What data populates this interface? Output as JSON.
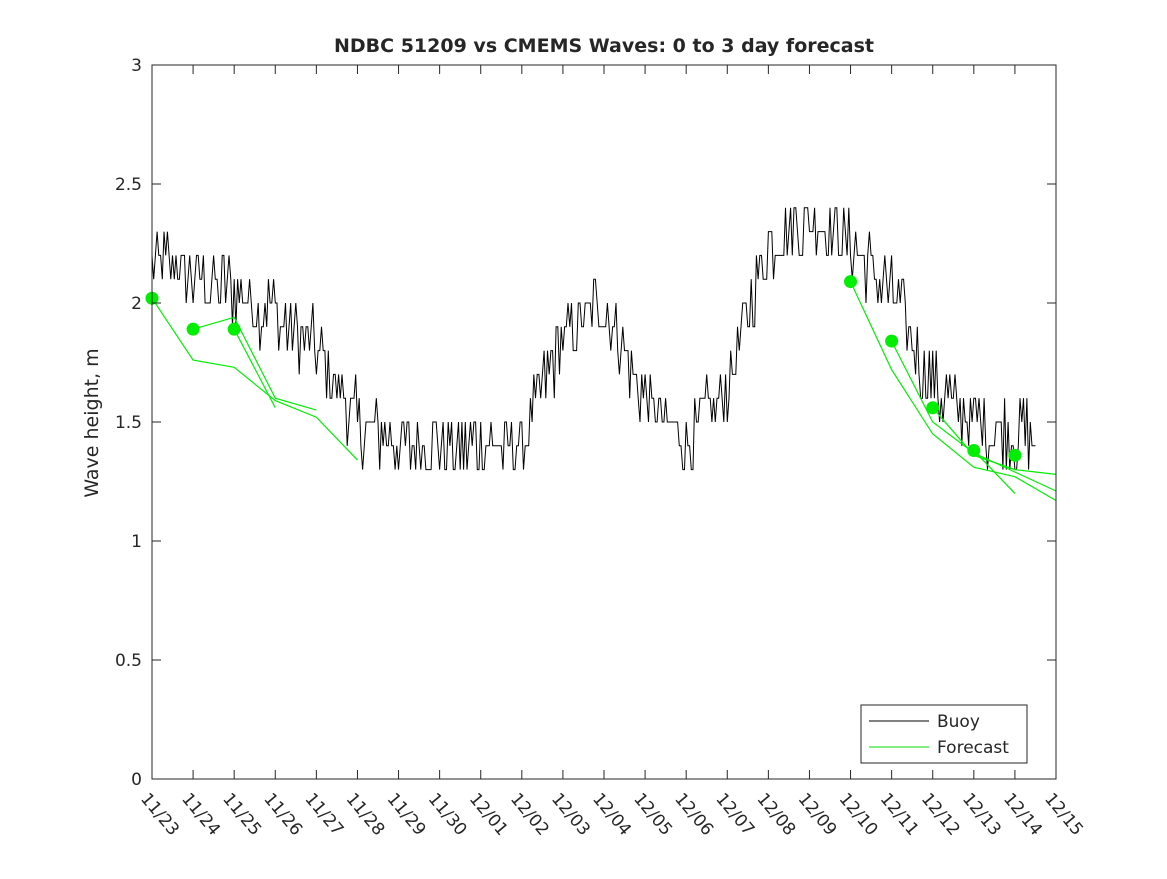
{
  "chart_data": {
    "type": "line",
    "title": "NDBC 51209 vs CMEMS Waves: 0 to 3 day forecast",
    "xlabel": "",
    "ylabel": "Wave height, m",
    "ylim": [
      0,
      3
    ],
    "yticks": [
      0,
      0.5,
      1,
      1.5,
      2,
      2.5,
      3
    ],
    "ytick_labels": [
      "0",
      "0.5",
      "1",
      "1.5",
      "2",
      "2.5",
      "3"
    ],
    "x_unit": "days",
    "xlim": [
      "11/23",
      "12/15"
    ],
    "xtick_labels": [
      "11/23",
      "11/24",
      "11/25",
      "11/26",
      "11/27",
      "11/28",
      "11/29",
      "11/30",
      "12/01",
      "12/02",
      "12/03",
      "12/04",
      "12/05",
      "12/06",
      "12/07",
      "12/08",
      "12/09",
      "12/10",
      "12/11",
      "12/12",
      "12/13",
      "12/14",
      "12/15"
    ],
    "grid": false,
    "legend": {
      "position": "bottom-right",
      "entries": [
        {
          "label": "Buoy",
          "color": "#000000"
        },
        {
          "label": "Forecast",
          "color": "#00dd00"
        }
      ]
    },
    "colors": {
      "buoy": "#000000",
      "forecast": "#00ee00",
      "axes": "#262626"
    },
    "buoy_series": {
      "name": "Buoy",
      "segments": [
        {
          "x": [
            "11/23",
            "11/24",
            "11/25",
            "11/26",
            "11/27",
            "11/28",
            "11/29",
            "11/30",
            "12/01",
            "12/02",
            "12/03",
            "12/04",
            "12/05",
            "12/06",
            "12/07",
            "12/08",
            "12/09",
            "12/10",
            "12/11",
            "12/12",
            "12/13",
            "12/14"
          ],
          "y": [
            2.2,
            2.1,
            2.05,
            1.95,
            1.8,
            1.5,
            1.4,
            1.4,
            1.4,
            1.4,
            1.85,
            2.0,
            1.6,
            1.4,
            1.65,
            2.25,
            2.35,
            2.25,
            2.05,
            1.65,
            1.5,
            1.45
          ]
        }
      ]
    },
    "forecast_series": [
      {
        "x": [
          "11/23",
          "11/24",
          "11/25",
          "11/26",
          "11/27",
          "11/28"
        ],
        "y": [
          2.02,
          1.76,
          1.73,
          1.59,
          1.52,
          1.34
        ]
      },
      {
        "x": [
          "11/24",
          "11/25",
          "11/26",
          "11/27"
        ],
        "y": [
          1.89,
          1.94,
          1.6,
          1.55
        ]
      },
      {
        "x": [
          "11/25",
          "11/26"
        ],
        "y": [
          1.89,
          1.56
        ]
      },
      {
        "x": [
          "12/10",
          "12/11",
          "12/12",
          "12/13",
          "12/14",
          "12/15"
        ],
        "y": [
          2.09,
          1.72,
          1.45,
          1.31,
          1.27,
          1.17
        ]
      },
      {
        "x": [
          "12/11",
          "12/12",
          "12/13",
          "12/14",
          "12/15"
        ],
        "y": [
          1.84,
          1.5,
          1.37,
          1.29,
          1.21
        ]
      },
      {
        "x": [
          "12/12",
          "12/13",
          "12/14",
          "12/15"
        ],
        "y": [
          1.56,
          1.36,
          1.3,
          1.28
        ]
      },
      {
        "x": [
          "12/13",
          "12/14"
        ],
        "y": [
          1.38,
          1.2
        ]
      }
    ],
    "forecast_initial_points": {
      "x": [
        "11/23",
        "11/24",
        "11/25",
        "12/10",
        "12/11",
        "12/12",
        "12/13",
        "12/14"
      ],
      "y": [
        2.02,
        1.89,
        1.89,
        2.09,
        1.84,
        1.56,
        1.38,
        1.36
      ]
    }
  }
}
